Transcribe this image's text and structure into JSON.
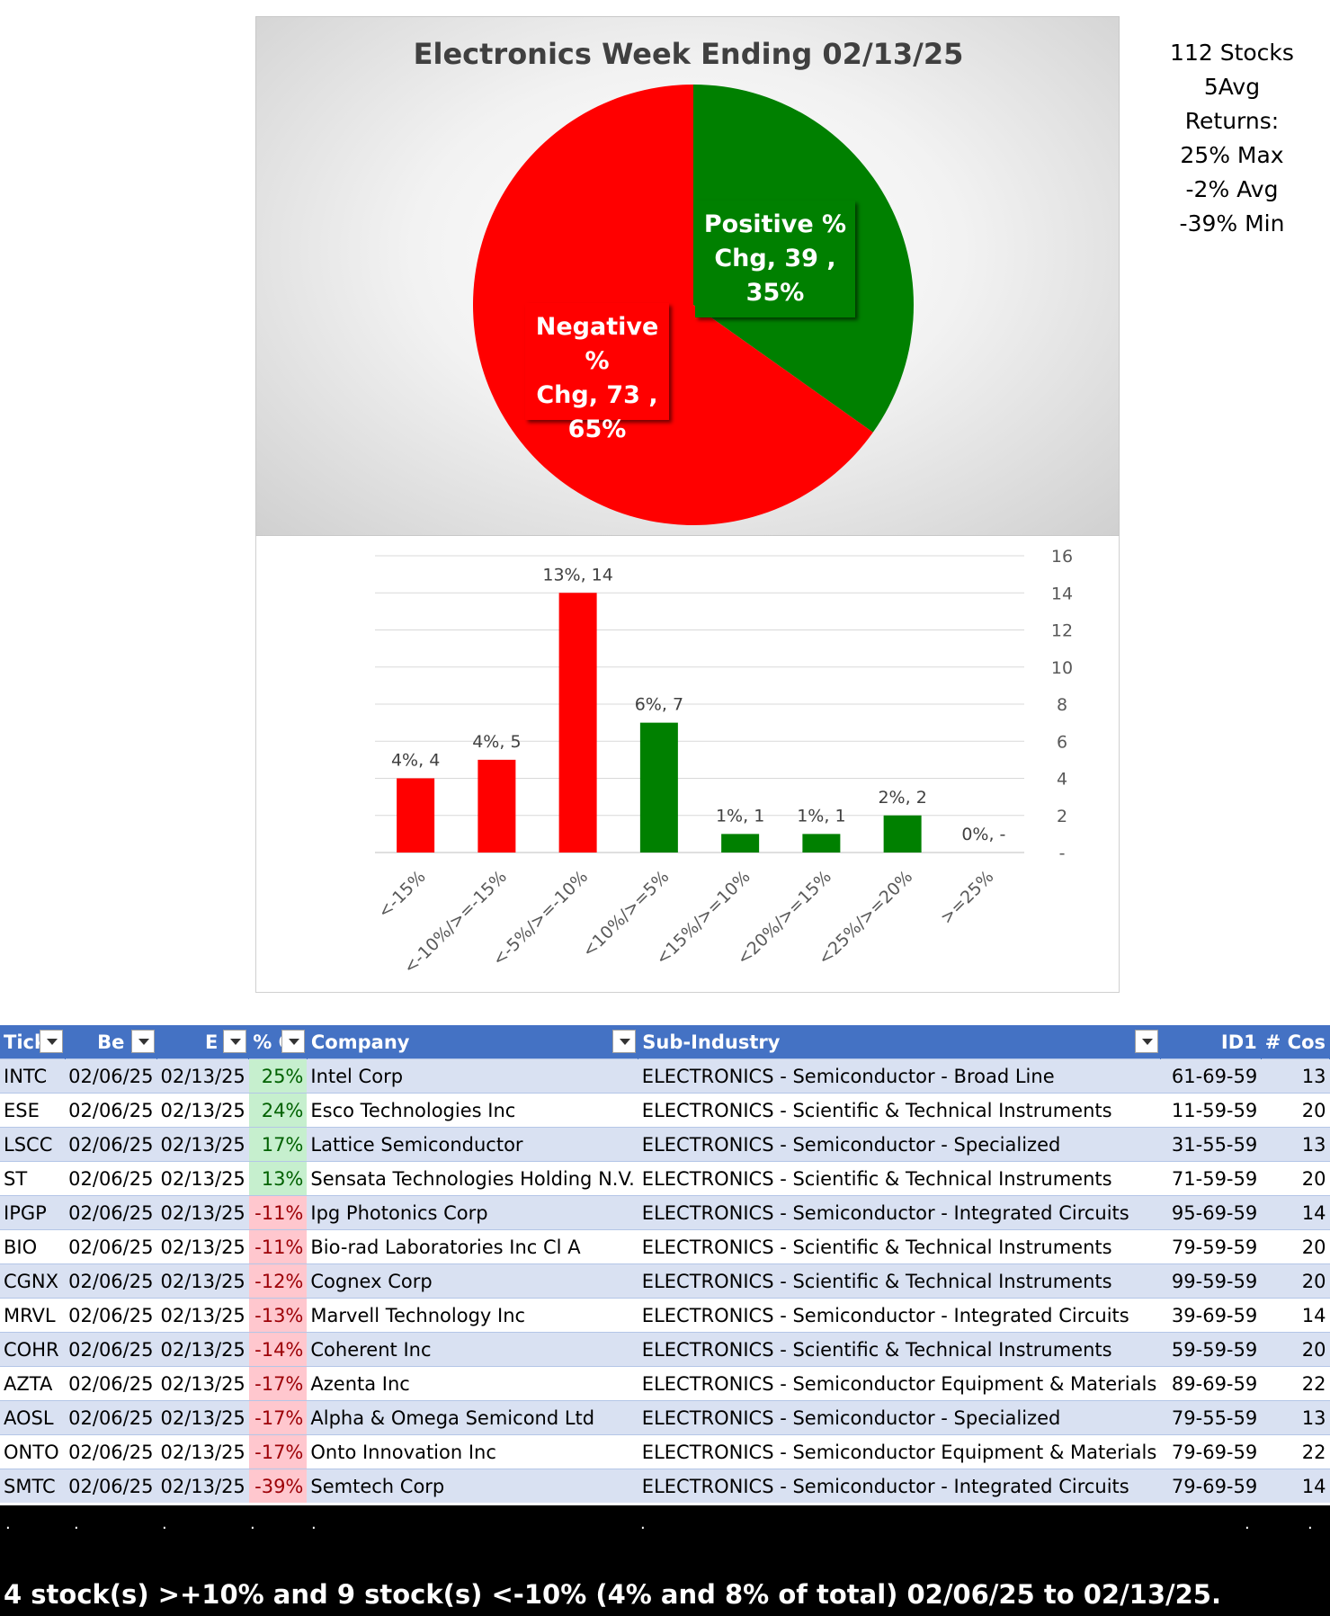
{
  "chart_data": [
    {
      "type": "pie",
      "title": "Electronics Week Ending 02/13/25",
      "slices": [
        {
          "name": "Positive % Chg",
          "value": 39,
          "percent": "35%",
          "color": "#008000"
        },
        {
          "name": "Negative % Chg",
          "value": 73,
          "percent": "65%",
          "color": "#ff0000"
        }
      ]
    },
    {
      "type": "bar",
      "categories": [
        "<-15%",
        "<-10%/>=-15%",
        "<-5%/>=-10%",
        "<10%/>=5%",
        "<15%/>=10%",
        "<20%/>=15%",
        "<25%/>=20%",
        ">=25%"
      ],
      "values": [
        4,
        5,
        14,
        7,
        1,
        1,
        2,
        0
      ],
      "data_labels": [
        "4%,  4",
        "4%,  5",
        "13%,  14",
        "6%,  7",
        "1%,  1",
        "1%,  1",
        "2%,  2",
        "0%,  -"
      ],
      "colors": [
        "#ff0000",
        "#ff0000",
        "#ff0000",
        "#008000",
        "#008000",
        "#008000",
        "#008000",
        "#008000"
      ],
      "yticks": [
        "-",
        "2",
        "4",
        "6",
        "8",
        "10",
        "12",
        "14",
        "16"
      ],
      "ylim": [
        0,
        16
      ],
      "yaxis_position": "right",
      "grid": true
    }
  ],
  "stats": {
    "lines": [
      "112 Stocks",
      "5Avg",
      "Returns:",
      "25% Max",
      "-2% Avg",
      "-39% Min"
    ]
  },
  "table": {
    "headers": [
      "Tick",
      "Be",
      "E",
      "% C",
      "Company",
      "Sub-Industry",
      "ID1",
      "# Cos"
    ],
    "rows": [
      [
        "INTC",
        "02/06/25",
        "02/13/25",
        "25%",
        "Intel Corp",
        "ELECTRONICS - Semiconductor - Broad Line",
        "61-69-59",
        "13"
      ],
      [
        "ESE",
        "02/06/25",
        "02/13/25",
        "24%",
        "Esco Technologies Inc",
        "ELECTRONICS - Scientific & Technical Instruments",
        "11-59-59",
        "20"
      ],
      [
        "LSCC",
        "02/06/25",
        "02/13/25",
        "17%",
        "Lattice Semiconductor",
        "ELECTRONICS - Semiconductor - Specialized",
        "31-55-59",
        "13"
      ],
      [
        "ST",
        "02/06/25",
        "02/13/25",
        "13%",
        "Sensata Technologies Holding N.V.",
        "ELECTRONICS - Scientific & Technical Instruments",
        "71-59-59",
        "20"
      ],
      [
        "IPGP",
        "02/06/25",
        "02/13/25",
        "-11%",
        "Ipg Photonics Corp",
        "ELECTRONICS - Semiconductor - Integrated Circuits",
        "95-69-59",
        "14"
      ],
      [
        "BIO",
        "02/06/25",
        "02/13/25",
        "-11%",
        "Bio-rad Laboratories Inc Cl A",
        "ELECTRONICS - Scientific & Technical Instruments",
        "79-59-59",
        "20"
      ],
      [
        "CGNX",
        "02/06/25",
        "02/13/25",
        "-12%",
        "Cognex Corp",
        "ELECTRONICS - Scientific & Technical Instruments",
        "99-59-59",
        "20"
      ],
      [
        "MRVL",
        "02/06/25",
        "02/13/25",
        "-13%",
        "Marvell Technology Inc",
        "ELECTRONICS - Semiconductor - Integrated Circuits",
        "39-69-59",
        "14"
      ],
      [
        "COHR",
        "02/06/25",
        "02/13/25",
        "-14%",
        "Coherent Inc",
        "ELECTRONICS - Scientific & Technical Instruments",
        "59-59-59",
        "20"
      ],
      [
        "AZTA",
        "02/06/25",
        "02/13/25",
        "-17%",
        "Azenta Inc",
        "ELECTRONICS - Semiconductor Equipment & Materials",
        "89-69-59",
        "22"
      ],
      [
        "AOSL",
        "02/06/25",
        "02/13/25",
        "-17%",
        "Alpha & Omega Semicond Ltd",
        "ELECTRONICS - Semiconductor - Specialized",
        "79-55-59",
        "13"
      ],
      [
        "ONTO",
        "02/06/25",
        "02/13/25",
        "-17%",
        "Onto Innovation Inc",
        "ELECTRONICS - Semiconductor Equipment & Materials",
        "79-69-59",
        "22"
      ],
      [
        "SMTC",
        "02/06/25",
        "02/13/25",
        "-39%",
        "Semtech Corp",
        "ELECTRONICS - Semiconductor - Integrated Circuits",
        "79-69-59",
        "14"
      ]
    ]
  },
  "footer": {
    "text": "4 stock(s) >+10% and 9 stock(s) <-10% (4% and 8% of total) 02/06/25 to 02/13/25.",
    "dots": [
      ".",
      ".",
      ".",
      ".",
      ".",
      ".",
      ".",
      "."
    ]
  }
}
